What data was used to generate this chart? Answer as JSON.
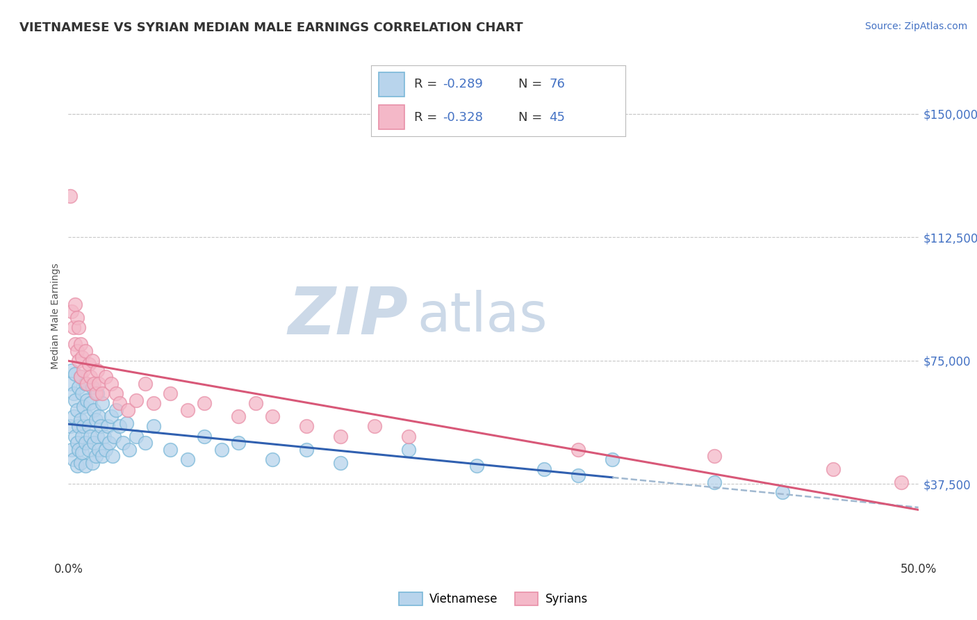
{
  "title": "VIETNAMESE VS SYRIAN MEDIAN MALE EARNINGS CORRELATION CHART",
  "source": "Source: ZipAtlas.com",
  "ylabel": "Median Male Earnings",
  "xlim": [
    0.0,
    0.5
  ],
  "ylim": [
    15000,
    162000
  ],
  "yticks": [
    37500,
    75000,
    112500,
    150000
  ],
  "ytick_labels": [
    "$37,500",
    "$75,000",
    "$112,500",
    "$150,000"
  ],
  "xticks": [
    0.0,
    0.5
  ],
  "xtick_labels": [
    "0.0%",
    "50.0%"
  ],
  "watermark_zip": "ZIP",
  "watermark_atlas": "atlas",
  "watermark_color": "#ccd9e8",
  "background_color": "#ffffff",
  "grid_color": "#c8c8c8",
  "title_color": "#333333",
  "title_fontsize": 13,
  "source_color": "#4472c4",
  "viet_color": "#7ab8d8",
  "viet_color_fill": "#b8d4ec",
  "syr_color": "#e890a8",
  "syr_color_fill": "#f4b8c8",
  "viet_line_color": "#3060b0",
  "syr_line_color": "#d85878",
  "dashed_line_color": "#a0b8d0",
  "R_viet": -0.289,
  "N_viet": 76,
  "R_syr": -0.328,
  "N_syr": 45,
  "viet_x": [
    0.001,
    0.001,
    0.002,
    0.002,
    0.003,
    0.003,
    0.003,
    0.004,
    0.004,
    0.004,
    0.005,
    0.005,
    0.005,
    0.006,
    0.006,
    0.006,
    0.007,
    0.007,
    0.007,
    0.008,
    0.008,
    0.008,
    0.009,
    0.009,
    0.01,
    0.01,
    0.01,
    0.011,
    0.011,
    0.012,
    0.012,
    0.013,
    0.013,
    0.014,
    0.014,
    0.015,
    0.015,
    0.016,
    0.016,
    0.017,
    0.017,
    0.018,
    0.018,
    0.019,
    0.02,
    0.02,
    0.021,
    0.022,
    0.023,
    0.024,
    0.025,
    0.026,
    0.027,
    0.028,
    0.03,
    0.032,
    0.034,
    0.036,
    0.04,
    0.045,
    0.05,
    0.06,
    0.07,
    0.08,
    0.09,
    0.1,
    0.12,
    0.14,
    0.16,
    0.2,
    0.24,
    0.28,
    0.3,
    0.32,
    0.38,
    0.42
  ],
  "viet_y": [
    68000,
    55000,
    72000,
    48000,
    65000,
    58000,
    45000,
    71000,
    52000,
    63000,
    60000,
    50000,
    43000,
    67000,
    55000,
    48000,
    70000,
    57000,
    44000,
    65000,
    52000,
    47000,
    61000,
    55000,
    68000,
    50000,
    43000,
    63000,
    58000,
    55000,
    48000,
    62000,
    52000,
    67000,
    44000,
    60000,
    50000,
    57000,
    46000,
    65000,
    52000,
    58000,
    48000,
    55000,
    62000,
    46000,
    52000,
    48000,
    55000,
    50000,
    58000,
    46000,
    52000,
    60000,
    55000,
    50000,
    56000,
    48000,
    52000,
    50000,
    55000,
    48000,
    45000,
    52000,
    48000,
    50000,
    45000,
    48000,
    44000,
    48000,
    43000,
    42000,
    40000,
    45000,
    38000,
    35000
  ],
  "syr_x": [
    0.001,
    0.002,
    0.003,
    0.004,
    0.004,
    0.005,
    0.005,
    0.006,
    0.006,
    0.007,
    0.007,
    0.008,
    0.009,
    0.01,
    0.011,
    0.012,
    0.013,
    0.014,
    0.015,
    0.016,
    0.017,
    0.018,
    0.02,
    0.022,
    0.025,
    0.028,
    0.03,
    0.035,
    0.04,
    0.045,
    0.05,
    0.06,
    0.07,
    0.08,
    0.1,
    0.11,
    0.12,
    0.14,
    0.16,
    0.18,
    0.2,
    0.3,
    0.38,
    0.45,
    0.49
  ],
  "syr_y": [
    125000,
    90000,
    85000,
    80000,
    92000,
    78000,
    88000,
    75000,
    85000,
    80000,
    70000,
    76000,
    72000,
    78000,
    68000,
    74000,
    70000,
    75000,
    68000,
    65000,
    72000,
    68000,
    65000,
    70000,
    68000,
    65000,
    62000,
    60000,
    63000,
    68000,
    62000,
    65000,
    60000,
    62000,
    58000,
    62000,
    58000,
    55000,
    52000,
    55000,
    52000,
    48000,
    46000,
    42000,
    38000
  ]
}
